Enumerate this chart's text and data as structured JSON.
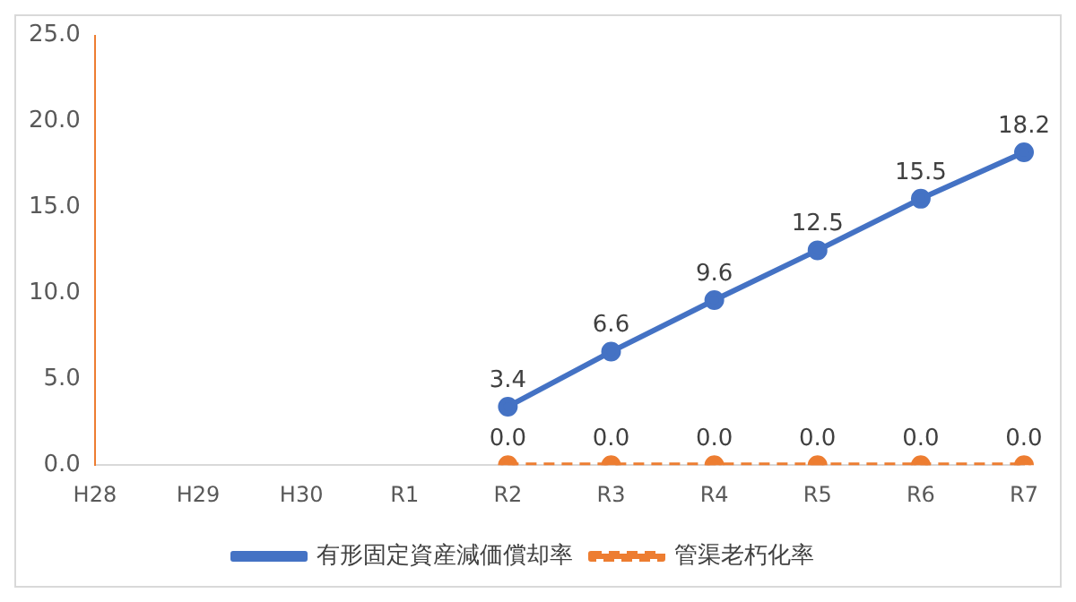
{
  "chart_data": {
    "type": "line",
    "categories": [
      "H28",
      "H29",
      "H30",
      "R1",
      "R2",
      "R3",
      "R4",
      "R5",
      "R6",
      "R7"
    ],
    "series": [
      {
        "name": "有形固定資産減価償却率",
        "color": "#4472c4",
        "values": [
          null,
          null,
          null,
          null,
          3.4,
          6.6,
          9.6,
          12.5,
          15.5,
          18.2
        ],
        "value_labels": [
          null,
          null,
          null,
          null,
          "3.4",
          "6.6",
          "9.6",
          "12.5",
          "15.5",
          "18.2"
        ],
        "line_style": "solid"
      },
      {
        "name": "管渠老朽化率",
        "color": "#ed7d31",
        "values": [
          null,
          null,
          null,
          null,
          0,
          0,
          0,
          0,
          0,
          0
        ],
        "value_labels": [
          null,
          null,
          null,
          null,
          "0.0",
          "0.0",
          "0.0",
          "0.0",
          "0.0",
          "0.0"
        ],
        "line_style": "dashed"
      }
    ],
    "ylim": [
      0,
      25
    ],
    "yticks": [
      {
        "value": 0,
        "label": "0.0"
      },
      {
        "value": 5,
        "label": "5.0"
      },
      {
        "value": 10,
        "label": "10.0"
      },
      {
        "value": 15,
        "label": "15.0"
      },
      {
        "value": 20,
        "label": "20.0"
      },
      {
        "value": 25,
        "label": "25.0"
      }
    ],
    "grid": false,
    "legend": "bottom",
    "marker": "circle"
  }
}
